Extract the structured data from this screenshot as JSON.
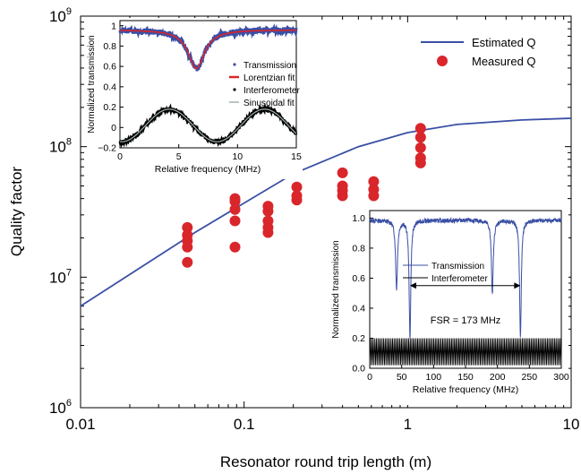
{
  "colors": {
    "estimated_line": "#3a4fa5",
    "measured_marker": "#d9262b",
    "transmission": "#3a4fa5",
    "lorentzian": "#d9262b",
    "interferometer": "#000000",
    "sinusoidal": "#9fb3a8"
  },
  "chart_data": [
    {
      "type": "scatter",
      "xscale": "log",
      "yscale": "log",
      "xlabel": "Resonator round trip length (m)",
      "ylabel": "Quality factor",
      "xlim": [
        0.01,
        10
      ],
      "ylim": [
        1000000,
        1000000000
      ],
      "xticks": [
        0.01,
        0.1,
        1,
        10
      ],
      "xtick_labels": [
        "0.01",
        "0.1",
        "1",
        "10"
      ],
      "yticks": [
        1000000,
        10000000,
        100000000,
        1000000000
      ],
      "ytick_labels": [
        {
          "base": "10",
          "exp": "6"
        },
        {
          "base": "10",
          "exp": "7"
        },
        {
          "base": "10",
          "exp": "8"
        },
        {
          "base": "10",
          "exp": "9"
        }
      ],
      "legend_position": "top-right",
      "series": [
        {
          "name": "Estimated Q",
          "kind": "line",
          "x": [
            0.01,
            0.02,
            0.05,
            0.1,
            0.2,
            0.5,
            1,
            2,
            5,
            10
          ],
          "y": [
            6000000,
            10500000,
            22000000,
            37000000,
            62000000,
            100000000,
            128000000,
            148000000,
            160000000,
            165000000
          ]
        },
        {
          "name": "Measured Q",
          "kind": "scatter",
          "points": [
            [
              0.045,
              24000000
            ],
            [
              0.045,
              21000000
            ],
            [
              0.045,
              19000000
            ],
            [
              0.045,
              17000000
            ],
            [
              0.045,
              13000000
            ],
            [
              0.088,
              40000000
            ],
            [
              0.088,
              38000000
            ],
            [
              0.088,
              33000000
            ],
            [
              0.088,
              27000000
            ],
            [
              0.088,
              17000000
            ],
            [
              0.14,
              35000000
            ],
            [
              0.14,
              32000000
            ],
            [
              0.14,
              27000000
            ],
            [
              0.14,
              24000000
            ],
            [
              0.14,
              22000000
            ],
            [
              0.21,
              49000000
            ],
            [
              0.21,
              42000000
            ],
            [
              0.21,
              39000000
            ],
            [
              0.4,
              63000000
            ],
            [
              0.4,
              50000000
            ],
            [
              0.4,
              46000000
            ],
            [
              0.4,
              42000000
            ],
            [
              0.62,
              54000000
            ],
            [
              0.62,
              47000000
            ],
            [
              0.62,
              42000000
            ],
            [
              1.2,
              138000000
            ],
            [
              1.2,
              118000000
            ],
            [
              1.2,
              98000000
            ],
            [
              1.2,
              82000000
            ],
            [
              1.2,
              75000000
            ]
          ]
        }
      ]
    },
    {
      "type": "line",
      "xlabel": "Relative frequency (MHz)",
      "ylabel": "Normalized transmission",
      "xlim": [
        0,
        15
      ],
      "ylim": [
        -0.2,
        1.05
      ],
      "xticks": [
        0,
        5,
        10,
        15
      ],
      "yticks": [
        -0.2,
        0,
        0.2,
        0.4,
        0.6,
        0.8,
        1
      ],
      "ytick_labels": [
        "−0.2",
        "0",
        "0.2",
        "0.4",
        "0.6",
        "0.8",
        "1"
      ],
      "legend_position": "right",
      "legend": [
        "Transmission",
        "Lorentzian fit",
        "Interferometer",
        "Sinusoidal fit"
      ],
      "lorentzian": {
        "center": 6.5,
        "width": 1.7,
        "depth": 0.38,
        "baseline": 0.96
      },
      "sinusoid": {
        "period": 8.1,
        "phase_peak": 4.2,
        "mean": 0.02,
        "amplitude": 0.16
      }
    },
    {
      "type": "line",
      "xlabel": "Relative frequency (MHz)",
      "ylabel": "Normalized transmission",
      "xlim": [
        0,
        300
      ],
      "ylim": [
        0,
        1.05
      ],
      "xticks": [
        0,
        50,
        100,
        150,
        200,
        250,
        300
      ],
      "yticks": [
        0,
        0.2,
        0.4,
        0.6,
        0.8,
        1
      ],
      "ytick_labels": [
        "0.0",
        "0.2",
        "0.4",
        "0.6",
        "0.8",
        "1.0"
      ],
      "legend_position": "center",
      "legend": [
        "Transmission",
        "Interferometer"
      ],
      "annotation": "FSR = 173 MHz",
      "fsr_arrow": [
        63,
        236
      ],
      "dips": [
        {
          "x": 42,
          "depth": 0.45,
          "width": 1.8
        },
        {
          "x": 63,
          "depth": 0.78,
          "width": 1.6
        },
        {
          "x": 192,
          "depth": 0.48,
          "width": 1.8
        },
        {
          "x": 236,
          "depth": 0.78,
          "width": 1.6
        }
      ],
      "interferometer_range": [
        0.02,
        0.2
      ]
    }
  ]
}
